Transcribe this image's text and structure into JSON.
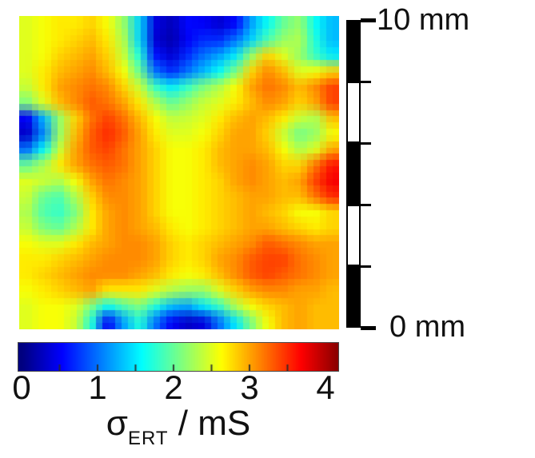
{
  "figure": {
    "background": "#ffffff",
    "text_color": "#111111"
  },
  "chart_data": {
    "type": "heatmap",
    "colormap": "jet",
    "value_label_sigma": "σ",
    "value_label_sub": "ERT",
    "value_label_unit": " / mS",
    "value_range": [
      0,
      4.2
    ],
    "colorbar": {
      "tick_labels": [
        "0",
        "1",
        "2",
        "3",
        "4"
      ],
      "tick_values": [
        0,
        1,
        2,
        3,
        4
      ],
      "tick_marks": [
        0.5,
        1,
        1.5,
        2,
        2.5,
        3,
        3.5
      ],
      "border_color": "#4a4a4a"
    },
    "scale_bar": {
      "top_label": "10 mm",
      "bottom_label": "0 mm",
      "range_mm": [
        0,
        10
      ],
      "segments": 5,
      "segment_mm": 2,
      "fill_color": "#000000"
    },
    "grid": {
      "rows": 20,
      "cols": 20,
      "values": [
        [
          2.5,
          2.6,
          2.7,
          2.7,
          2.8,
          2.6,
          2.2,
          1.4,
          0.4,
          0.25,
          0.55,
          0.5,
          0.35,
          0.55,
          1.2,
          1.6,
          2.0,
          2.2,
          1.6,
          1.3
        ],
        [
          2.5,
          2.6,
          2.7,
          2.8,
          2.9,
          2.7,
          2.3,
          1.4,
          0.35,
          0.2,
          0.5,
          0.7,
          0.7,
          1.0,
          1.4,
          1.9,
          2.2,
          2.3,
          1.7,
          1.3
        ],
        [
          2.5,
          2.6,
          2.8,
          2.9,
          3.0,
          2.8,
          2.4,
          1.7,
          0.6,
          0.35,
          0.7,
          1.0,
          1.2,
          1.5,
          2.2,
          2.8,
          2.5,
          2.2,
          1.8,
          1.5
        ],
        [
          2.5,
          2.7,
          2.9,
          3.0,
          3.1,
          2.9,
          2.6,
          2.0,
          1.0,
          0.7,
          1.0,
          1.3,
          1.6,
          2.1,
          2.8,
          3.1,
          2.9,
          2.5,
          2.6,
          2.8
        ],
        [
          2.4,
          2.7,
          3.0,
          3.1,
          3.2,
          3.1,
          2.8,
          2.4,
          1.8,
          1.5,
          1.8,
          2.1,
          2.3,
          2.6,
          3.0,
          3.2,
          3.1,
          2.9,
          3.1,
          3.4
        ],
        [
          2.1,
          2.5,
          2.9,
          3.1,
          3.3,
          3.2,
          3.0,
          2.7,
          2.3,
          2.0,
          2.2,
          2.4,
          2.5,
          2.7,
          2.9,
          3.1,
          3.0,
          2.8,
          3.0,
          3.4
        ],
        [
          0.5,
          1.3,
          2.2,
          2.8,
          3.2,
          3.4,
          3.2,
          2.9,
          2.6,
          2.35,
          2.4,
          2.5,
          2.7,
          2.9,
          3.0,
          2.9,
          2.7,
          2.4,
          2.3,
          2.9
        ],
        [
          0.3,
          1.1,
          2.2,
          2.9,
          3.3,
          3.5,
          3.3,
          3.0,
          2.7,
          2.5,
          2.5,
          2.6,
          2.8,
          3.0,
          3.0,
          2.8,
          2.4,
          2.05,
          2.2,
          2.6
        ],
        [
          1.0,
          1.6,
          2.4,
          3.0,
          3.3,
          3.4,
          3.2,
          3.0,
          2.8,
          2.6,
          2.6,
          2.7,
          2.9,
          3.0,
          3.0,
          2.9,
          2.6,
          2.3,
          2.5,
          3.0
        ],
        [
          2.0,
          2.3,
          2.7,
          3.0,
          3.2,
          3.3,
          3.2,
          3.0,
          2.8,
          2.6,
          2.6,
          2.7,
          2.9,
          3.0,
          3.1,
          3.0,
          2.8,
          2.8,
          3.2,
          3.6
        ],
        [
          2.5,
          2.4,
          2.3,
          2.6,
          3.0,
          3.2,
          3.1,
          3.0,
          2.8,
          2.6,
          2.6,
          2.7,
          2.8,
          3.0,
          3.1,
          3.0,
          2.9,
          3.0,
          3.4,
          3.7
        ],
        [
          2.4,
          2.0,
          1.9,
          2.3,
          2.8,
          3.1,
          3.1,
          3.0,
          2.8,
          2.6,
          2.6,
          2.7,
          2.8,
          2.9,
          3.0,
          3.0,
          2.9,
          2.9,
          3.2,
          3.5
        ],
        [
          2.3,
          1.9,
          1.8,
          2.1,
          2.7,
          3.0,
          3.1,
          3.0,
          2.8,
          2.6,
          2.6,
          2.7,
          2.8,
          2.9,
          3.0,
          2.9,
          2.8,
          2.6,
          2.6,
          2.8
        ],
        [
          2.4,
          2.1,
          2.0,
          2.3,
          2.7,
          3.0,
          3.1,
          3.0,
          2.9,
          2.7,
          2.6,
          2.7,
          2.8,
          2.9,
          3.0,
          3.0,
          2.9,
          2.8,
          2.7,
          2.8
        ],
        [
          2.6,
          2.5,
          2.5,
          2.7,
          2.9,
          3.0,
          3.1,
          3.1,
          3.0,
          2.8,
          2.7,
          2.8,
          2.9,
          3.0,
          3.1,
          3.3,
          3.2,
          3.1,
          3.0,
          3.0
        ],
        [
          2.7,
          2.7,
          2.8,
          2.9,
          3.0,
          3.1,
          3.1,
          3.1,
          3.0,
          2.8,
          2.7,
          2.8,
          3.0,
          3.1,
          3.3,
          3.4,
          3.4,
          3.2,
          3.1,
          3.0
        ],
        [
          2.7,
          2.8,
          2.9,
          3.0,
          3.1,
          3.1,
          3.1,
          3.0,
          2.9,
          2.7,
          2.6,
          2.7,
          2.9,
          3.1,
          3.3,
          3.4,
          3.3,
          3.2,
          3.1,
          3.0
        ],
        [
          2.6,
          2.7,
          2.8,
          2.9,
          3.0,
          2.7,
          2.7,
          2.7,
          2.5,
          2.3,
          2.2,
          2.2,
          2.5,
          2.8,
          3.0,
          3.1,
          3.1,
          3.0,
          3.0,
          2.9
        ],
        [
          2.5,
          2.6,
          2.6,
          2.5,
          2.1,
          1.6,
          1.9,
          2.1,
          1.7,
          1.3,
          1.2,
          1.5,
          1.8,
          2.3,
          2.6,
          2.8,
          2.9,
          3.0,
          2.9,
          2.9
        ],
        [
          2.5,
          2.6,
          2.6,
          2.4,
          1.7,
          0.5,
          1.2,
          1.7,
          1.0,
          0.5,
          0.3,
          0.4,
          1.0,
          1.5,
          2.1,
          2.6,
          2.9,
          3.0,
          2.9,
          2.9
        ]
      ]
    }
  }
}
